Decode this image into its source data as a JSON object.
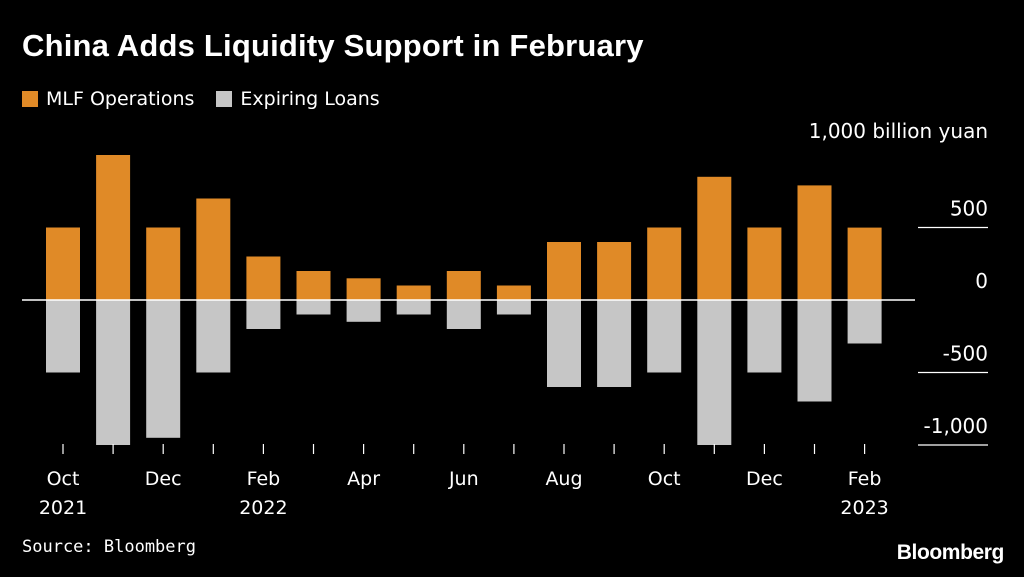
{
  "title": "China Adds Liquidity Support in February",
  "source": "Source: Bloomberg",
  "brand": "Bloomberg",
  "colors": {
    "mlf": "#e08a27",
    "expiring": "#c6c6c6",
    "background": "#000000",
    "text": "#ffffff"
  },
  "chart_data": {
    "type": "bar",
    "title": "China Adds Liquidity Support in February",
    "unit_label": "1,000 billion yuan",
    "ylim": [
      -1000,
      1000
    ],
    "yticks": [
      {
        "value": 500,
        "label": "500"
      },
      {
        "value": 0,
        "label": "0"
      },
      {
        "value": -500,
        "label": "-500"
      },
      {
        "value": -1000,
        "label": "-1,000"
      }
    ],
    "categories": [
      "Oct 2021",
      "Nov 2021",
      "Dec 2021",
      "Jan 2022",
      "Feb 2022",
      "Mar 2022",
      "Apr 2022",
      "May 2022",
      "Jun 2022",
      "Jul 2022",
      "Aug 2022",
      "Sep 2022",
      "Oct 2022",
      "Nov 2022",
      "Dec 2022",
      "Jan 2023",
      "Feb 2023"
    ],
    "xtick_labels": [
      {
        "index": 0,
        "lines": [
          "Oct",
          "2021"
        ]
      },
      {
        "index": 2,
        "lines": [
          "Dec"
        ]
      },
      {
        "index": 4,
        "lines": [
          "Feb",
          "2022"
        ]
      },
      {
        "index": 6,
        "lines": [
          "Apr"
        ]
      },
      {
        "index": 8,
        "lines": [
          "Jun"
        ]
      },
      {
        "index": 10,
        "lines": [
          "Aug"
        ]
      },
      {
        "index": 12,
        "lines": [
          "Oct"
        ]
      },
      {
        "index": 14,
        "lines": [
          "Dec"
        ]
      },
      {
        "index": 16,
        "lines": [
          "Feb",
          "2023"
        ]
      }
    ],
    "series": [
      {
        "name": "MLF Operations",
        "color": "#e08a27",
        "values": [
          500,
          1000,
          500,
          700,
          300,
          200,
          150,
          100,
          200,
          100,
          400,
          400,
          500,
          850,
          500,
          790,
          499
        ]
      },
      {
        "name": "Expiring Loans",
        "color": "#c6c6c6",
        "values": [
          -500,
          -1000,
          -950,
          -500,
          -200,
          -100,
          -150,
          -100,
          -200,
          -100,
          -600,
          -600,
          -500,
          -1000,
          -500,
          -700,
          -300
        ]
      }
    ],
    "grid": false,
    "legend_position": "top-left"
  }
}
